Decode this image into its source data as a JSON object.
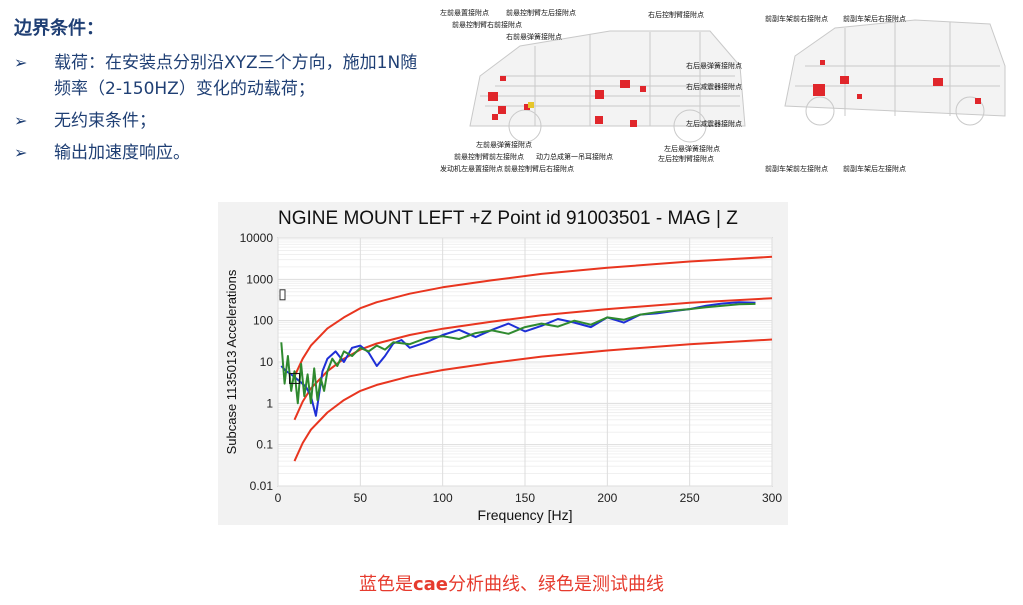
{
  "heading": "边界条件：",
  "bullets": [
    {
      "mark": "➢",
      "text": "载荷：在安装点分别沿XYZ三个方向，施加1N随频率（2-150HZ）变化的动载荷；"
    },
    {
      "mark": "➢",
      "text": "无约束条件；"
    },
    {
      "mark": "➢",
      "text": "输出加速度响应。"
    }
  ],
  "car_left_labels": [
    "左前悬置接附点",
    "前悬控制臂左后接附点",
    "前悬控制臂右前接附点",
    "右前悬弹簧接附点",
    "右后控制臂接附点",
    "右后悬弹簧接附点",
    "右后减震器接附点",
    "左后减震器接附点",
    "左后悬弹簧接附点",
    "左后控制臂接附点",
    "左前悬弹簧接附点",
    "前悬控制臂前左接附点",
    "动力总成第一吊耳接附点",
    "发动机左悬置接附点",
    "前悬控制臂后右接附点"
  ],
  "car_right_labels": [
    "前副车架前右接附点",
    "前副车架后右接附点",
    "前副车架前左接附点",
    "前副车架后左接附点"
  ],
  "chart_data": {
    "type": "line",
    "title": "NGINE MOUNT LEFT +Z Point id 91003501 - MAG | Z",
    "xlabel": "Frequency [Hz]",
    "ylabel": "Subcase 1135013 Accelerations",
    "xlim": [
      0,
      300
    ],
    "ylim": [
      0.01,
      10000
    ],
    "yscale": "log",
    "xticks": [
      "0",
      "50",
      "100",
      "150",
      "200",
      "250",
      "300"
    ],
    "yticks": [
      "0.01",
      "0.1",
      "1",
      "10",
      "100",
      "1000",
      "10000"
    ],
    "grid": true,
    "legend": "none",
    "series": [
      {
        "color": "#e8351f",
        "x": [
          10,
          15,
          20,
          30,
          40,
          50,
          60,
          80,
          100,
          130,
          160,
          200,
          250,
          300
        ],
        "y": [
          4.5,
          12,
          25,
          65,
          120,
          200,
          280,
          450,
          640,
          950,
          1350,
          1900,
          2700,
          3500
        ]
      },
      {
        "color": "#e8351f",
        "x": [
          10,
          15,
          20,
          30,
          40,
          50,
          60,
          80,
          100,
          130,
          160,
          200,
          250,
          300
        ],
        "y": [
          0.4,
          1.1,
          2.3,
          6,
          12,
          20,
          28,
          45,
          64,
          95,
          135,
          190,
          270,
          350
        ]
      },
      {
        "color": "#e8351f",
        "x": [
          10,
          15,
          20,
          30,
          40,
          50,
          60,
          80,
          100,
          130,
          160,
          200,
          250,
          300
        ],
        "y": [
          0.04,
          0.11,
          0.23,
          0.6,
          1.2,
          2,
          2.8,
          4.5,
          6.4,
          9.5,
          13.5,
          19,
          27,
          35
        ]
      },
      {
        "color": "#1e2fd6",
        "x": [
          2,
          5,
          8,
          11,
          14,
          17,
          20,
          23,
          27,
          30,
          35,
          40,
          45,
          50,
          55,
          60,
          65,
          70,
          75,
          80,
          90,
          100,
          110,
          120,
          130,
          140,
          150,
          160,
          170,
          180,
          190,
          200,
          210,
          220,
          230,
          240,
          250,
          260,
          270,
          280,
          290
        ],
        "y": [
          8,
          6,
          5,
          4,
          3.2,
          2.5,
          1.5,
          0.5,
          6,
          12,
          18,
          10,
          22,
          25,
          17,
          8,
          14,
          28,
          34,
          22,
          30,
          45,
          60,
          40,
          60,
          85,
          55,
          75,
          110,
          90,
          70,
          120,
          90,
          140,
          150,
          170,
          190,
          230,
          260,
          280,
          270
        ]
      },
      {
        "color": "#2f8a2f",
        "x": [
          2,
          4,
          6,
          8,
          10,
          12,
          14,
          16,
          18,
          20,
          22,
          24,
          26,
          28,
          30,
          33,
          36,
          40,
          45,
          50,
          55,
          60,
          65,
          70,
          80,
          90,
          100,
          110,
          120,
          130,
          140,
          150,
          160,
          170,
          180,
          190,
          200,
          210,
          220,
          230,
          240,
          250,
          260,
          270,
          280,
          290
        ],
        "y": [
          30,
          3,
          14,
          2,
          6,
          1,
          9,
          1.5,
          5,
          1,
          7,
          1.2,
          4,
          2,
          6,
          12,
          8,
          18,
          14,
          22,
          18,
          25,
          20,
          30,
          27,
          38,
          42,
          36,
          50,
          58,
          48,
          70,
          85,
          72,
          100,
          80,
          120,
          105,
          140,
          160,
          175,
          190,
          210,
          230,
          250,
          255
        ]
      }
    ]
  },
  "caption": {
    "pre": "蓝色是",
    "strong": "cae",
    "post": "分析曲线、绿色是测试曲线"
  }
}
